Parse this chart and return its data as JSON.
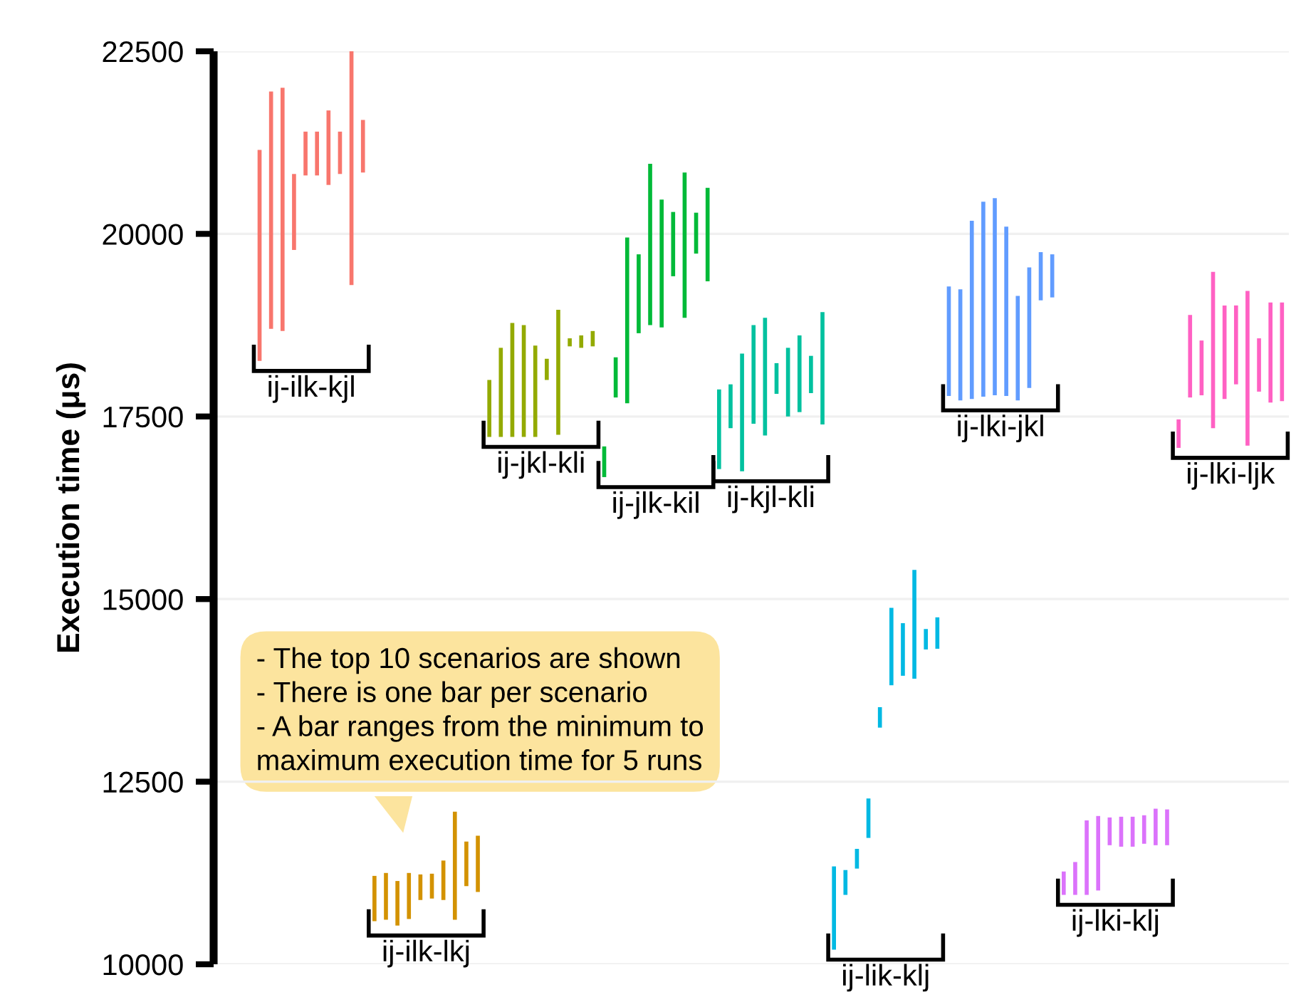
{
  "chart_data": {
    "type": "bar",
    "ylabel": "Execution time (μs)",
    "categories": [
      null,
      null,
      null,
      null,
      null,
      null,
      null,
      null,
      null,
      null,
      null,
      null,
      null,
      null,
      null,
      null,
      null,
      null,
      null,
      null,
      null,
      null,
      null,
      null,
      null,
      null,
      null,
      null,
      null,
      null,
      null,
      null,
      null,
      null,
      null,
      null,
      null,
      null,
      null,
      null,
      null,
      null,
      null,
      null,
      null,
      null,
      null,
      null,
      null,
      null,
      null,
      null,
      null,
      null,
      null,
      null,
      null,
      null,
      null,
      null,
      null,
      null,
      null,
      null,
      null,
      null,
      null,
      null,
      null,
      null,
      null,
      null,
      null,
      null,
      null,
      null,
      null,
      null,
      null,
      null,
      null,
      null,
      null,
      null,
      null,
      null,
      null,
      null,
      null,
      null
    ],
    "base": [
      18260,
      18700,
      18670,
      19780,
      20800,
      20800,
      20670,
      20820,
      19300,
      20840,
      10590,
      10610,
      10530,
      10620,
      10880,
      10900,
      10880,
      10610,
      11070,
      10990,
      17220,
      17220,
      17220,
      17220,
      17220,
      18000,
      17250,
      18460,
      18440,
      18460,
      16670,
      17760,
      17680,
      18640,
      18750,
      18720,
      19420,
      18850,
      19730,
      19350,
      16780,
      17340,
      16750,
      17400,
      17240,
      17810,
      17500,
      17560,
      17820,
      17390,
      10200,
      10950,
      11310,
      11730,
      13240,
      13820,
      13950,
      13910,
      14310,
      14320,
      17780,
      17720,
      17740,
      17770,
      17790,
      17780,
      17720,
      17890,
      19090,
      19130,
      10950,
      10950,
      10950,
      11010,
      11630,
      11610,
      11610,
      11650,
      11630,
      11630,
      17070,
      17760,
      17790,
      17340,
      17740,
      17940,
      17100,
      17840,
      17690,
      17710
    ],
    "values": [
      2890,
      3250,
      3330,
      1040,
      600,
      600,
      1020,
      580,
      3200,
      720,
      620,
      640,
      610,
      630,
      350,
      340,
      540,
      1480,
      610,
      770,
      780,
      1220,
      1560,
      1530,
      1250,
      290,
      1710,
      110,
      170,
      210,
      420,
      550,
      2270,
      1080,
      2210,
      1750,
      880,
      1990,
      560,
      1280,
      1090,
      600,
      1610,
      1350,
      1610,
      420,
      940,
      1050,
      510,
      1540,
      1140,
      340,
      270,
      540,
      280,
      1060,
      720,
      1490,
      280,
      430,
      1500,
      1520,
      2440,
      2670,
      2700,
      2320,
      1430,
      1650,
      660,
      590,
      320,
      450,
      1020,
      1020,
      380,
      410,
      410,
      390,
      500,
      490,
      390,
      1130,
      750,
      2140,
      1280,
      1080,
      2120,
      730,
      1370,
      1350
    ],
    "colors": [
      "#F8766D",
      "#F8766D",
      "#F8766D",
      "#F8766D",
      "#F8766D",
      "#F8766D",
      "#F8766D",
      "#F8766D",
      "#F8766D",
      "#F8766D",
      "#D39200",
      "#D39200",
      "#D39200",
      "#D39200",
      "#D39200",
      "#D39200",
      "#D39200",
      "#D39200",
      "#D39200",
      "#D39200",
      "#93AA00",
      "#93AA00",
      "#93AA00",
      "#93AA00",
      "#93AA00",
      "#93AA00",
      "#93AA00",
      "#93AA00",
      "#93AA00",
      "#93AA00",
      "#00BA38",
      "#00BA38",
      "#00BA38",
      "#00BA38",
      "#00BA38",
      "#00BA38",
      "#00BA38",
      "#00BA38",
      "#00BA38",
      "#00BA38",
      "#00C19F",
      "#00C19F",
      "#00C19F",
      "#00C19F",
      "#00C19F",
      "#00C19F",
      "#00C19F",
      "#00C19F",
      "#00C19F",
      "#00C19F",
      "#00B9E3",
      "#00B9E3",
      "#00B9E3",
      "#00B9E3",
      "#00B9E3",
      "#00B9E3",
      "#00B9E3",
      "#00B9E3",
      "#00B9E3",
      "#00B9E3",
      "#619CFF",
      "#619CFF",
      "#619CFF",
      "#619CFF",
      "#619CFF",
      "#619CFF",
      "#619CFF",
      "#619CFF",
      "#619CFF",
      "#619CFF",
      "#DB72FB",
      "#DB72FB",
      "#DB72FB",
      "#DB72FB",
      "#DB72FB",
      "#DB72FB",
      "#DB72FB",
      "#DB72FB",
      "#DB72FB",
      "#DB72FB",
      "#FF61C3",
      "#FF61C3",
      "#FF61C3",
      "#FF61C3",
      "#FF61C3",
      "#FF61C3",
      "#FF61C3",
      "#FF61C3",
      "#FF61C3",
      "#FF61C3"
    ],
    "ylim": [
      10000,
      22500
    ],
    "yticks": [
      10000,
      12500,
      15000,
      17500,
      20000,
      22500
    ],
    "grid": "y",
    "tick_labels": "y",
    "annotations": [
      "ij-ilk-kjl",
      "ij-ilk-lkj",
      "ij-jkl-kli",
      "ij-jlk-kil",
      "ij-kjl-kli",
      "ij-lik-klj",
      "ij-lki-jkl",
      "ij-lki-klj",
      "ij-lki-ljk",
      "- The top 10 scenarios are shown\n- There is one bar per scenario\n- A bar ranges from the minimum to\nmaximum execution time for 5 runs"
    ]
  }
}
